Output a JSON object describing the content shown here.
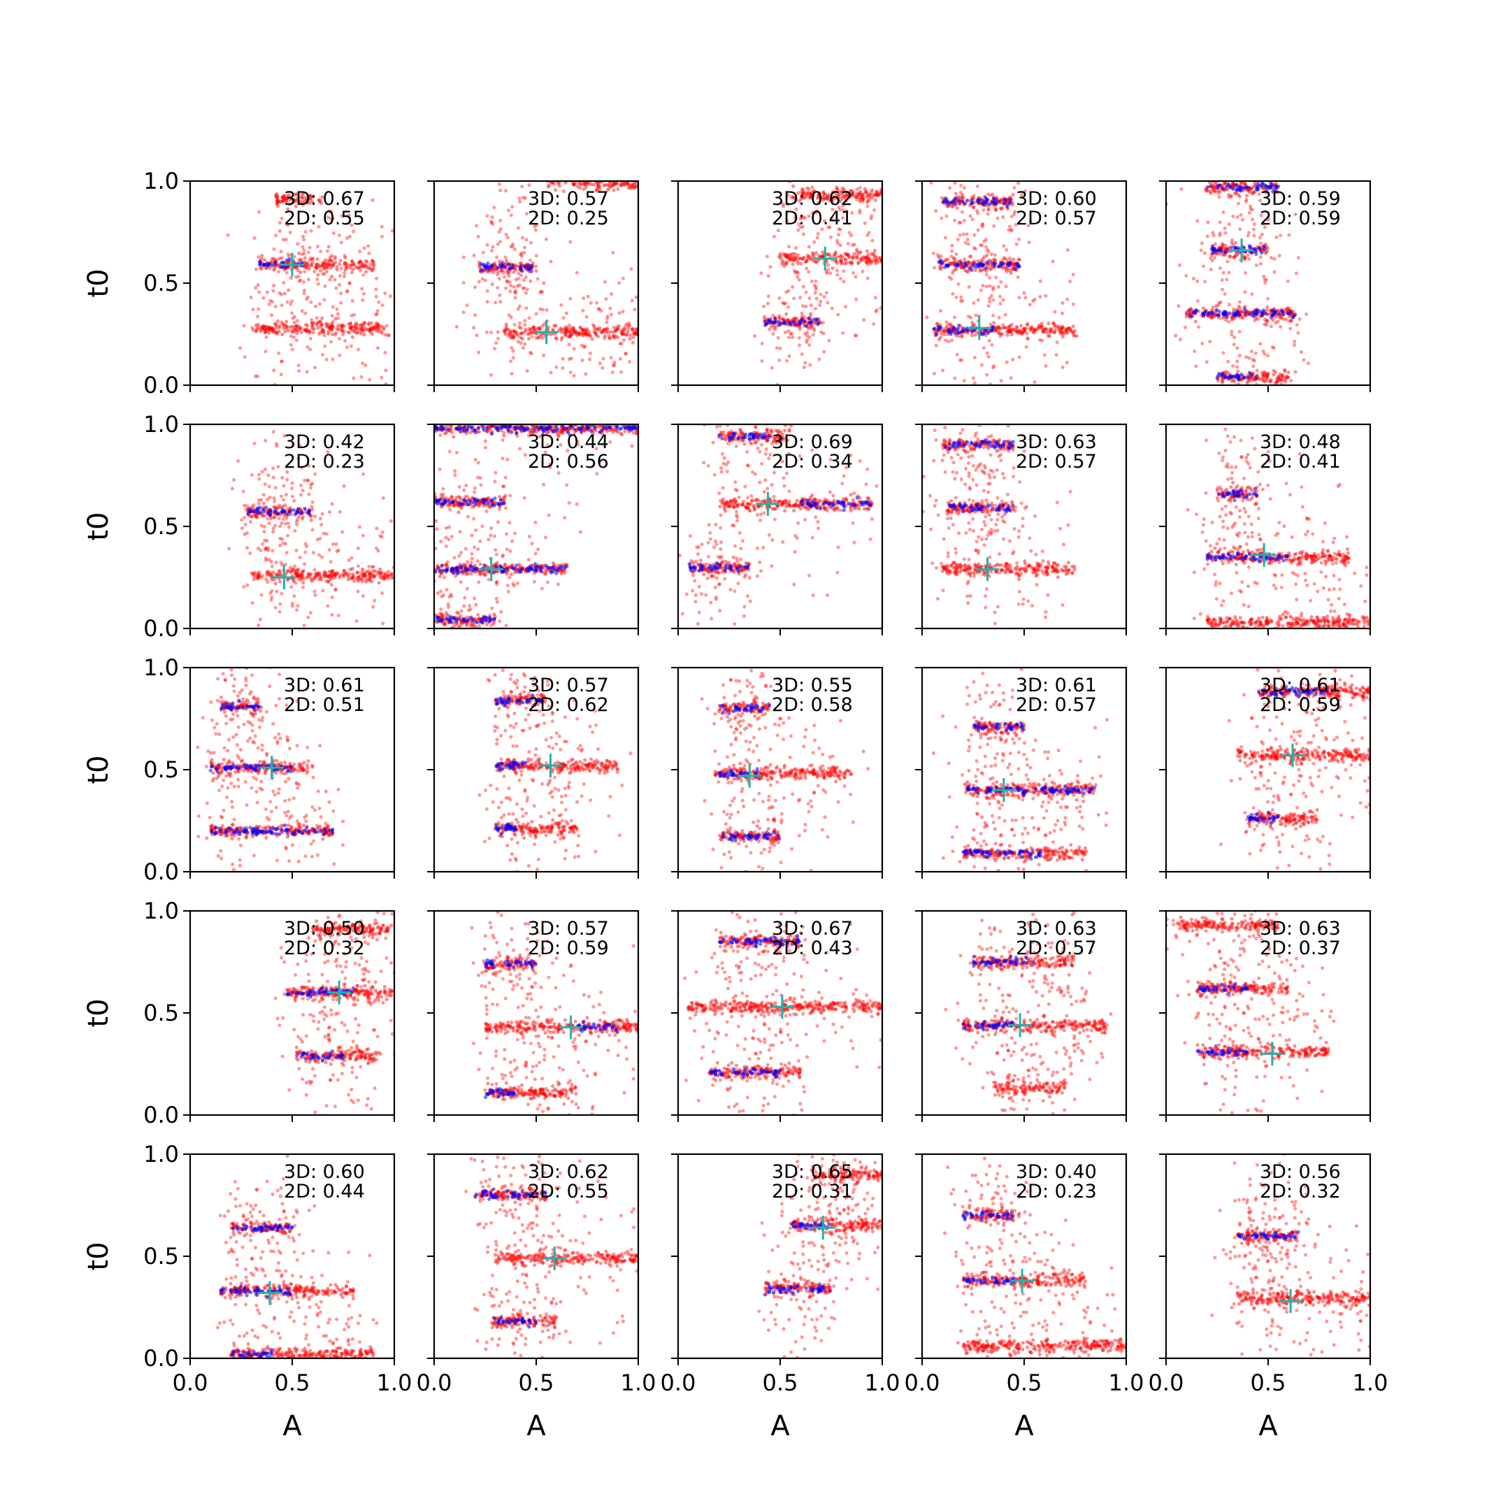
{
  "figure": {
    "type": "scatter-grid",
    "rows": 5,
    "cols": 5,
    "xlabel": "A",
    "ylabel": "t0",
    "xlim": [
      0,
      1
    ],
    "ylim": [
      0,
      1
    ],
    "xticks": [
      "0.0",
      "0.5",
      "1.0"
    ],
    "yticks": [
      "0.0",
      "0.5",
      "1.0"
    ],
    "colors": {
      "posterior": "#ff0000",
      "walkers": "#0000ff",
      "truth": "#20b2aa",
      "axis": "#000000"
    }
  },
  "chart_data": [
    {
      "row": 0,
      "col": 0,
      "type": "scatter",
      "annotations": [
        "3D: 0.67",
        "2D: 0.55"
      ],
      "truth": [
        0.5,
        0.59
      ],
      "clusters": [
        {
          "t0": 0.59,
          "a0": 0.34,
          "a1": 0.9,
          "blue": [
            0.34,
            0.56
          ]
        },
        {
          "t0": 0.28,
          "a0": 0.3,
          "a1": 0.96,
          "blue": null
        }
      ],
      "extra": [
        {
          "t0": 0.91,
          "a0": 0.42,
          "a1": 0.65
        }
      ]
    },
    {
      "row": 0,
      "col": 1,
      "type": "scatter",
      "annotations": [
        "3D: 0.57",
        "2D: 0.25"
      ],
      "truth": [
        0.55,
        0.26
      ],
      "clusters": [
        {
          "t0": 0.58,
          "a0": 0.22,
          "a1": 0.5,
          "blue": [
            0.22,
            0.5
          ]
        },
        {
          "t0": 0.26,
          "a0": 0.33,
          "a1": 1.0,
          "blue": null
        }
      ],
      "extra": [
        {
          "t0": 0.99,
          "a0": 0.55,
          "a1": 1.0
        }
      ]
    },
    {
      "row": 0,
      "col": 2,
      "type": "scatter",
      "annotations": [
        "3D: 0.62",
        "2D: 0.41"
      ],
      "truth": [
        0.72,
        0.62
      ],
      "clusters": [
        {
          "t0": 0.62,
          "a0": 0.5,
          "a1": 1.0,
          "blue": null
        },
        {
          "t0": 0.31,
          "a0": 0.42,
          "a1": 0.7,
          "blue": [
            0.42,
            0.7
          ]
        },
        {
          "t0": 0.93,
          "a0": 0.55,
          "a1": 1.0,
          "blue": null
        }
      ],
      "extra": []
    },
    {
      "row": 0,
      "col": 3,
      "type": "scatter",
      "annotations": [
        "3D: 0.60",
        "2D: 0.57"
      ],
      "truth": [
        0.28,
        0.28
      ],
      "clusters": [
        {
          "t0": 0.9,
          "a0": 0.1,
          "a1": 0.45,
          "blue": [
            0.1,
            0.45
          ]
        },
        {
          "t0": 0.59,
          "a0": 0.08,
          "a1": 0.48,
          "blue": [
            0.08,
            0.48
          ]
        },
        {
          "t0": 0.27,
          "a0": 0.05,
          "a1": 0.75,
          "blue": [
            0.05,
            0.35
          ]
        }
      ],
      "extra": []
    },
    {
      "row": 0,
      "col": 4,
      "type": "scatter",
      "annotations": [
        "3D: 0.59",
        "2D: 0.59"
      ],
      "truth": [
        0.37,
        0.66
      ],
      "clusters": [
        {
          "t0": 0.97,
          "a0": 0.2,
          "a1": 0.55,
          "blue": [
            0.2,
            0.55
          ]
        },
        {
          "t0": 0.66,
          "a0": 0.22,
          "a1": 0.5,
          "blue": [
            0.22,
            0.5
          ]
        },
        {
          "t0": 0.35,
          "a0": 0.1,
          "a1": 0.65,
          "blue": [
            0.1,
            0.65
          ]
        },
        {
          "t0": 0.04,
          "a0": 0.25,
          "a1": 0.6,
          "blue": [
            0.25,
            0.45
          ]
        }
      ],
      "extra": []
    },
    {
      "row": 1,
      "col": 0,
      "type": "scatter",
      "annotations": [
        "3D: 0.42",
        "2D: 0.23"
      ],
      "truth": [
        0.46,
        0.25
      ],
      "clusters": [
        {
          "t0": 0.57,
          "a0": 0.28,
          "a1": 0.6,
          "blue": [
            0.28,
            0.6
          ]
        },
        {
          "t0": 0.26,
          "a0": 0.3,
          "a1": 1.0,
          "blue": null
        }
      ],
      "extra": []
    },
    {
      "row": 1,
      "col": 1,
      "type": "scatter",
      "annotations": [
        "3D: 0.44",
        "2D: 0.56"
      ],
      "truth": [
        0.28,
        0.29
      ],
      "clusters": [
        {
          "t0": 0.98,
          "a0": 0.0,
          "a1": 1.0,
          "blue": [
            0.0,
            1.0
          ]
        },
        {
          "t0": 0.62,
          "a0": 0.0,
          "a1": 0.35,
          "blue": [
            0.0,
            0.35
          ]
        },
        {
          "t0": 0.29,
          "a0": 0.0,
          "a1": 0.65,
          "blue": [
            0.0,
            0.65
          ]
        },
        {
          "t0": 0.04,
          "a0": 0.0,
          "a1": 0.3,
          "blue": [
            0.0,
            0.3
          ]
        }
      ],
      "extra": []
    },
    {
      "row": 1,
      "col": 2,
      "type": "scatter",
      "annotations": [
        "3D: 0.69",
        "2D: 0.34"
      ],
      "truth": [
        0.44,
        0.61
      ],
      "clusters": [
        {
          "t0": 0.94,
          "a0": 0.2,
          "a1": 0.55,
          "blue": [
            0.2,
            0.45
          ]
        },
        {
          "t0": 0.61,
          "a0": 0.2,
          "a1": 0.95,
          "blue": [
            0.6,
            0.95
          ]
        },
        {
          "t0": 0.3,
          "a0": 0.05,
          "a1": 0.35,
          "blue": [
            0.05,
            0.35
          ]
        }
      ],
      "extra": []
    },
    {
      "row": 1,
      "col": 3,
      "type": "scatter",
      "annotations": [
        "3D: 0.63",
        "2D: 0.57"
      ],
      "truth": [
        0.32,
        0.29
      ],
      "clusters": [
        {
          "t0": 0.9,
          "a0": 0.1,
          "a1": 0.45,
          "blue": [
            0.1,
            0.45
          ]
        },
        {
          "t0": 0.59,
          "a0": 0.12,
          "a1": 0.45,
          "blue": [
            0.12,
            0.45
          ]
        },
        {
          "t0": 0.29,
          "a0": 0.1,
          "a1": 0.75,
          "blue": null
        }
      ],
      "extra": []
    },
    {
      "row": 1,
      "col": 4,
      "type": "scatter",
      "annotations": [
        "3D: 0.48",
        "2D: 0.41"
      ],
      "truth": [
        0.48,
        0.36
      ],
      "clusters": [
        {
          "t0": 0.66,
          "a0": 0.25,
          "a1": 0.45,
          "blue": [
            0.25,
            0.45
          ]
        },
        {
          "t0": 0.35,
          "a0": 0.2,
          "a1": 0.9,
          "blue": [
            0.2,
            0.6
          ]
        },
        {
          "t0": 0.03,
          "a0": 0.2,
          "a1": 1.0,
          "blue": null
        }
      ],
      "extra": []
    },
    {
      "row": 2,
      "col": 0,
      "type": "scatter",
      "annotations": [
        "3D: 0.61",
        "2D: 0.51"
      ],
      "truth": [
        0.4,
        0.51
      ],
      "clusters": [
        {
          "t0": 0.81,
          "a0": 0.15,
          "a1": 0.35,
          "blue": [
            0.15,
            0.35
          ]
        },
        {
          "t0": 0.51,
          "a0": 0.1,
          "a1": 0.6,
          "blue": [
            0.1,
            0.5
          ]
        },
        {
          "t0": 0.2,
          "a0": 0.1,
          "a1": 0.7,
          "blue": [
            0.1,
            0.7
          ]
        }
      ],
      "extra": []
    },
    {
      "row": 2,
      "col": 1,
      "type": "scatter",
      "annotations": [
        "3D: 0.57",
        "2D: 0.62"
      ],
      "truth": [
        0.57,
        0.52
      ],
      "clusters": [
        {
          "t0": 0.84,
          "a0": 0.3,
          "a1": 0.55,
          "blue": [
            0.3,
            0.55
          ]
        },
        {
          "t0": 0.52,
          "a0": 0.3,
          "a1": 0.9,
          "blue": [
            0.3,
            0.45
          ]
        },
        {
          "t0": 0.21,
          "a0": 0.3,
          "a1": 0.7,
          "blue": [
            0.3,
            0.4
          ]
        }
      ],
      "extra": []
    },
    {
      "row": 2,
      "col": 2,
      "type": "scatter",
      "annotations": [
        "3D: 0.55",
        "2D: 0.58"
      ],
      "truth": [
        0.35,
        0.47
      ],
      "clusters": [
        {
          "t0": 0.8,
          "a0": 0.2,
          "a1": 0.45,
          "blue": [
            0.2,
            0.45
          ]
        },
        {
          "t0": 0.48,
          "a0": 0.18,
          "a1": 0.85,
          "blue": [
            0.18,
            0.4
          ]
        },
        {
          "t0": 0.17,
          "a0": 0.2,
          "a1": 0.5,
          "blue": [
            0.2,
            0.5
          ]
        }
      ],
      "extra": []
    },
    {
      "row": 2,
      "col": 3,
      "type": "scatter",
      "annotations": [
        "3D: 0.61",
        "2D: 0.57"
      ],
      "truth": [
        0.4,
        0.4
      ],
      "clusters": [
        {
          "t0": 0.71,
          "a0": 0.25,
          "a1": 0.5,
          "blue": [
            0.25,
            0.5
          ]
        },
        {
          "t0": 0.4,
          "a0": 0.2,
          "a1": 0.85,
          "blue": [
            0.2,
            0.85
          ]
        },
        {
          "t0": 0.09,
          "a0": 0.2,
          "a1": 0.8,
          "blue": [
            0.2,
            0.6
          ]
        }
      ],
      "extra": []
    },
    {
      "row": 2,
      "col": 4,
      "type": "scatter",
      "annotations": [
        "3D: 0.61",
        "2D: 0.59"
      ],
      "truth": [
        0.62,
        0.57
      ],
      "clusters": [
        {
          "t0": 0.88,
          "a0": 0.45,
          "a1": 1.0,
          "blue": [
            0.45,
            0.8
          ]
        },
        {
          "t0": 0.57,
          "a0": 0.35,
          "a1": 1.0,
          "blue": null
        },
        {
          "t0": 0.26,
          "a0": 0.4,
          "a1": 0.75,
          "blue": [
            0.4,
            0.55
          ]
        }
      ],
      "extra": []
    },
    {
      "row": 3,
      "col": 0,
      "type": "scatter",
      "annotations": [
        "3D: 0.50",
        "2D: 0.32"
      ],
      "truth": [
        0.73,
        0.6
      ],
      "clusters": [
        {
          "t0": 0.91,
          "a0": 0.6,
          "a1": 1.0,
          "blue": null
        },
        {
          "t0": 0.6,
          "a0": 0.47,
          "a1": 1.0,
          "blue": [
            0.47,
            0.8
          ]
        },
        {
          "t0": 0.29,
          "a0": 0.52,
          "a1": 0.92,
          "blue": [
            0.52,
            0.75
          ]
        }
      ],
      "extra": []
    },
    {
      "row": 3,
      "col": 1,
      "type": "scatter",
      "annotations": [
        "3D: 0.57",
        "2D: 0.59"
      ],
      "truth": [
        0.67,
        0.43
      ],
      "clusters": [
        {
          "t0": 0.74,
          "a0": 0.25,
          "a1": 0.5,
          "blue": [
            0.25,
            0.5
          ]
        },
        {
          "t0": 0.43,
          "a0": 0.25,
          "a1": 1.0,
          "blue": [
            0.7,
            0.9
          ]
        },
        {
          "t0": 0.11,
          "a0": 0.25,
          "a1": 0.7,
          "blue": [
            0.25,
            0.4
          ]
        }
      ],
      "extra": []
    },
    {
      "row": 3,
      "col": 2,
      "type": "scatter",
      "annotations": [
        "3D: 0.67",
        "2D: 0.43"
      ],
      "truth": [
        0.51,
        0.53
      ],
      "clusters": [
        {
          "t0": 0.53,
          "a0": 0.05,
          "a1": 1.0,
          "blue": null
        },
        {
          "t0": 0.21,
          "a0": 0.15,
          "a1": 0.6,
          "blue": [
            0.15,
            0.5
          ]
        },
        {
          "t0": 0.85,
          "a0": 0.2,
          "a1": 0.6,
          "blue": [
            0.2,
            0.6
          ]
        }
      ],
      "extra": []
    },
    {
      "row": 3,
      "col": 3,
      "type": "scatter",
      "annotations": [
        "3D: 0.63",
        "2D: 0.57"
      ],
      "truth": [
        0.48,
        0.44
      ],
      "clusters": [
        {
          "t0": 0.75,
          "a0": 0.25,
          "a1": 0.75,
          "blue": [
            0.25,
            0.55
          ]
        },
        {
          "t0": 0.44,
          "a0": 0.2,
          "a1": 0.9,
          "blue": [
            0.2,
            0.45
          ]
        },
        {
          "t0": 0.13,
          "a0": 0.35,
          "a1": 0.7,
          "blue": null
        }
      ],
      "extra": []
    },
    {
      "row": 3,
      "col": 4,
      "type": "scatter",
      "annotations": [
        "3D: 0.63",
        "2D: 0.37"
      ],
      "truth": [
        0.52,
        0.3
      ],
      "clusters": [
        {
          "t0": 0.62,
          "a0": 0.15,
          "a1": 0.6,
          "blue": [
            0.15,
            0.4
          ]
        },
        {
          "t0": 0.31,
          "a0": 0.15,
          "a1": 0.8,
          "blue": [
            0.15,
            0.4
          ]
        },
        {
          "t0": 0.93,
          "a0": 0.05,
          "a1": 0.55,
          "blue": null
        }
      ],
      "extra": []
    },
    {
      "row": 4,
      "col": 0,
      "type": "scatter",
      "annotations": [
        "3D: 0.60",
        "2D: 0.44"
      ],
      "truth": [
        0.39,
        0.32
      ],
      "clusters": [
        {
          "t0": 0.64,
          "a0": 0.2,
          "a1": 0.5,
          "blue": [
            0.2,
            0.5
          ]
        },
        {
          "t0": 0.33,
          "a0": 0.15,
          "a1": 0.8,
          "blue": [
            0.15,
            0.5
          ]
        },
        {
          "t0": 0.02,
          "a0": 0.2,
          "a1": 0.9,
          "blue": [
            0.2,
            0.4
          ]
        }
      ],
      "extra": []
    },
    {
      "row": 4,
      "col": 1,
      "type": "scatter",
      "annotations": [
        "3D: 0.62",
        "2D: 0.55"
      ],
      "truth": [
        0.59,
        0.49
      ],
      "clusters": [
        {
          "t0": 0.8,
          "a0": 0.2,
          "a1": 0.55,
          "blue": [
            0.2,
            0.55
          ]
        },
        {
          "t0": 0.49,
          "a0": 0.3,
          "a1": 1.0,
          "blue": null
        },
        {
          "t0": 0.18,
          "a0": 0.28,
          "a1": 0.6,
          "blue": [
            0.28,
            0.5
          ]
        }
      ],
      "extra": []
    },
    {
      "row": 4,
      "col": 2,
      "type": "scatter",
      "annotations": [
        "3D: 0.65",
        "2D: 0.31"
      ],
      "truth": [
        0.71,
        0.64
      ],
      "clusters": [
        {
          "t0": 0.65,
          "a0": 0.55,
          "a1": 1.0,
          "blue": [
            0.55,
            0.75
          ]
        },
        {
          "t0": 0.34,
          "a0": 0.42,
          "a1": 0.75,
          "blue": [
            0.42,
            0.75
          ]
        },
        {
          "t0": 0.9,
          "a0": 0.65,
          "a1": 1.0,
          "blue": null
        }
      ],
      "extra": []
    },
    {
      "row": 4,
      "col": 3,
      "type": "scatter",
      "annotations": [
        "3D: 0.40",
        "2D: 0.23"
      ],
      "truth": [
        0.49,
        0.38
      ],
      "clusters": [
        {
          "t0": 0.7,
          "a0": 0.2,
          "a1": 0.45,
          "blue": [
            0.2,
            0.45
          ]
        },
        {
          "t0": 0.38,
          "a0": 0.2,
          "a1": 0.8,
          "blue": [
            0.2,
            0.45
          ]
        },
        {
          "t0": 0.06,
          "a0": 0.2,
          "a1": 1.0,
          "blue": null
        }
      ],
      "extra": []
    },
    {
      "row": 4,
      "col": 4,
      "type": "scatter",
      "annotations": [
        "3D: 0.56",
        "2D: 0.32"
      ],
      "truth": [
        0.61,
        0.28
      ],
      "clusters": [
        {
          "t0": 0.6,
          "a0": 0.35,
          "a1": 0.65,
          "blue": [
            0.35,
            0.65
          ]
        },
        {
          "t0": 0.29,
          "a0": 0.35,
          "a1": 1.0,
          "blue": null
        }
      ],
      "extra": []
    }
  ]
}
